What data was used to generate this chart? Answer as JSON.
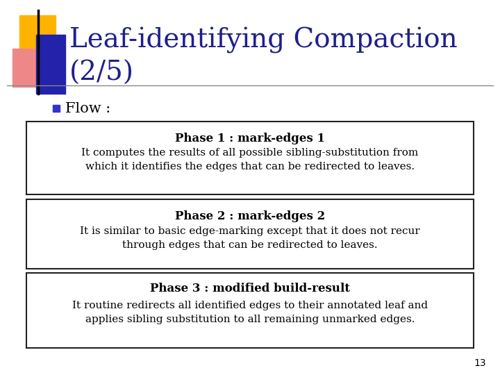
{
  "title_line1": "Leaf-identifying Compaction",
  "title_line2": "(2/5)",
  "title_color": "#1F1F8B",
  "background_color": "#FFFFFF",
  "bullet_text": "Flow :",
  "bullet_color": "#3333CC",
  "page_number": "13",
  "boxes": [
    {
      "heading": "Phase 1 : mark-edges 1",
      "body": "It computes the results of all possible sibling-substitution from\nwhich it identifies the edges that can be redirected to leaves."
    },
    {
      "heading": "Phase 2 : mark-edges 2",
      "body": "It is similar to basic edge-marking except that it does not recur\nthrough edges that can be redirected to leaves."
    },
    {
      "heading": "Phase 3 : modified build-result",
      "body": "It routine redirects all identified edges to their annotated leaf and\napplies sibling substitution to all remaining unmarked edges."
    }
  ],
  "box_border_color": "#222222",
  "box_face_color": "#FFFFFF",
  "text_color": "#000000",
  "heading_color": "#000000",
  "separator_color": "#666666",
  "deco_yellow": "#FFB300",
  "deco_red": "#DD2222",
  "deco_blue": "#2222AA",
  "deco_pink": "#EE8888"
}
